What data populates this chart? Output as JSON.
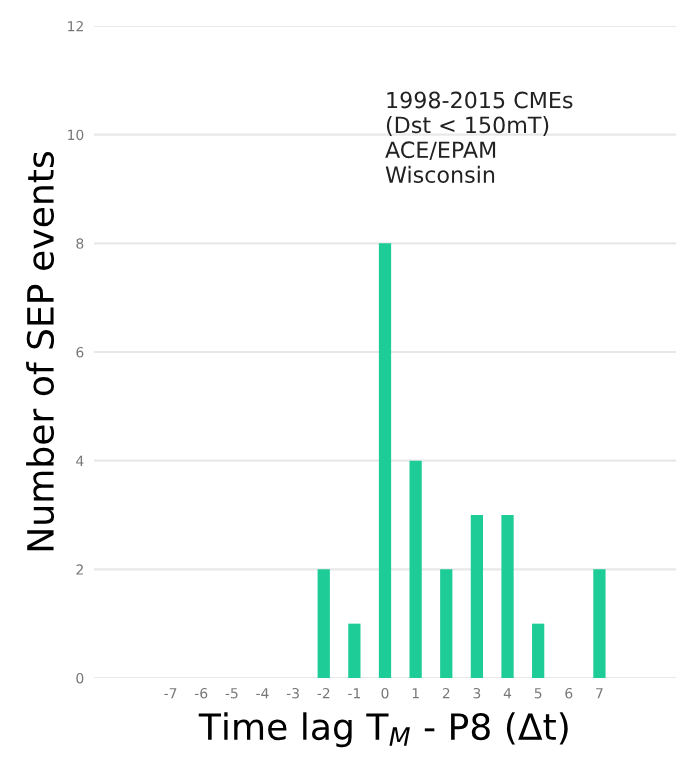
{
  "chart_data": {
    "type": "bar",
    "xlabel": "Time lag T$_{M}$ - P8 (Δt)",
    "ylabel": "Number of SEP events",
    "x": [
      -2,
      -1,
      0,
      1,
      2,
      3,
      4,
      5,
      7
    ],
    "values": [
      2,
      1,
      8,
      4,
      2,
      3,
      3,
      1,
      2
    ],
    "color": "#1dcc96",
    "xlim": [
      -9.5,
      9.5
    ],
    "xticks": [
      -7,
      -6,
      -5,
      -4,
      -3,
      -2,
      -1,
      0,
      1,
      2,
      3,
      4,
      5,
      6,
      7
    ],
    "ylim": [
      0,
      12
    ],
    "yticks": [
      0,
      2,
      4,
      6,
      8,
      10,
      12
    ],
    "grid": "y",
    "annotations": [
      "1998-2015 CMEs\n(Dst < 150mT)\nACE/EPAM\nWisconsin"
    ]
  }
}
